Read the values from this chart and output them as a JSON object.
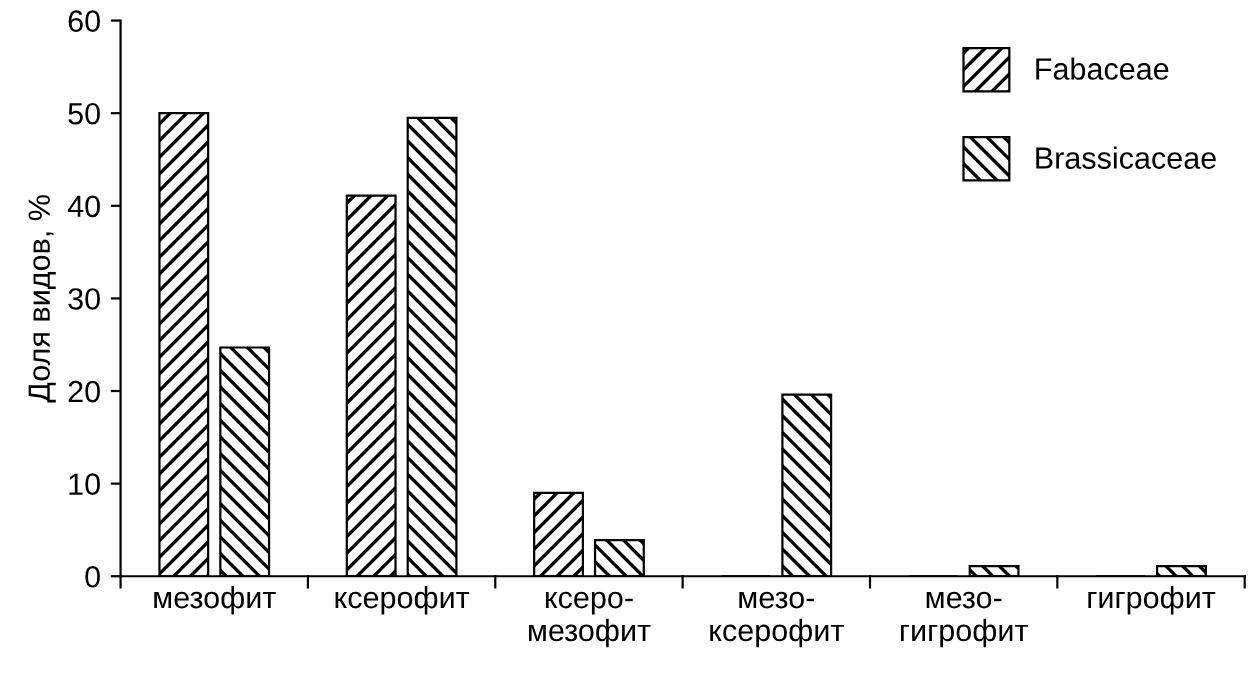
{
  "chart_data": {
    "type": "bar",
    "ylabel": "Доля видов, %",
    "categories": [
      "мезофит",
      "ксерофит",
      "ксеро-\nмезофит",
      "мезо-\nксерофит",
      "мезо-\nгигрофит",
      "гигрофит"
    ],
    "series": [
      {
        "name": "Fabaceae",
        "color": "#000000",
        "values": [
          50,
          41.1,
          9,
          0,
          0,
          0
        ]
      },
      {
        "name": "Brassicaceae",
        "color": "#000000",
        "values": [
          24.7,
          49.5,
          3.9,
          19.6,
          1.1,
          1.1
        ]
      }
    ],
    "ylim": [
      0,
      60
    ],
    "yticks": [
      0,
      10,
      20,
      30,
      40,
      50,
      60
    ],
    "grid": false,
    "legend": "top right"
  }
}
